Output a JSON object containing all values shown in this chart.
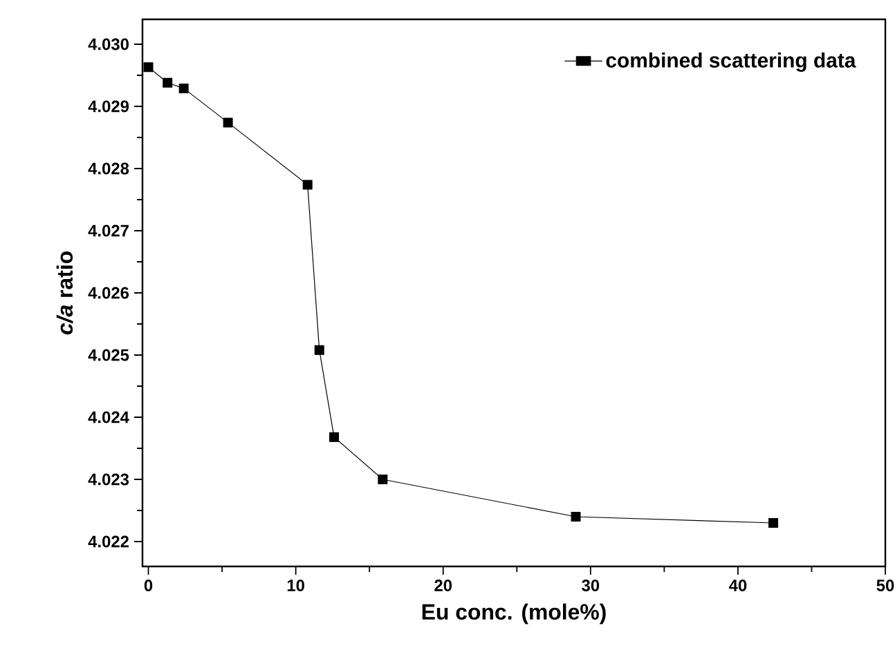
{
  "chart_data": {
    "type": "line",
    "xlabel": "Eu conc. (mole%)",
    "ylabel": "*c/a* ratio",
    "x": [
      0,
      1.3,
      2.4,
      5.4,
      10.8,
      11.6,
      12.6,
      15.9,
      29.0,
      42.4
    ],
    "series": [
      {
        "name": "combined scattering data",
        "color": "#000000",
        "values": [
          4.02963,
          4.02938,
          4.02929,
          4.02874,
          4.02774,
          4.02508,
          4.02368,
          4.023,
          4.0224,
          4.0223
        ]
      }
    ],
    "xlim": [
      -0.4,
      50
    ],
    "ylim": [
      4.0216,
      4.0304
    ],
    "xticks": [
      0,
      10,
      20,
      30,
      40,
      50
    ],
    "yticks": [
      {
        "value": 4.022,
        "label": "4.022"
      },
      {
        "value": 4.023,
        "label": "4.023"
      },
      {
        "value": 4.024,
        "label": "4.024"
      },
      {
        "value": 4.025,
        "label": "4.025"
      },
      {
        "value": 4.026,
        "label": "4.026"
      },
      {
        "value": 4.027,
        "label": "4.027"
      },
      {
        "value": 4.028,
        "label": "4.028"
      },
      {
        "value": 4.029,
        "label": "4.029"
      },
      {
        "value": 4.03,
        "label": "4.030"
      }
    ],
    "legend": "top right",
    "marker": "square",
    "line_style": "solid",
    "grid": false
  }
}
